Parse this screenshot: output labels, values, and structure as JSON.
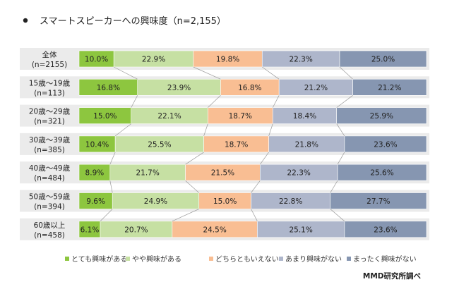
{
  "title": "スマートスピーカーへの興味度（n=2,155）",
  "source": "MMD研究所調べ",
  "chart_data": {
    "type": "bar",
    "orientation": "horizontal",
    "stacked": "percent",
    "categories": [
      {
        "name": "全体",
        "n": "(n=2155)"
      },
      {
        "name": "15歳～19歳",
        "n": "(n=113)"
      },
      {
        "name": "20歳～29歳",
        "n": "(n=321)"
      },
      {
        "name": "30歳～39歳",
        "n": "(n=385)"
      },
      {
        "name": "40歳～49歳",
        "n": "(n=484)"
      },
      {
        "name": "50歳～59歳",
        "n": "(n=394)"
      },
      {
        "name": "60歳以上",
        "n": "(n=458)"
      }
    ],
    "series": [
      {
        "name": "とても興味がある",
        "color": "#8dc63f",
        "values": [
          10.0,
          16.8,
          15.0,
          10.4,
          8.9,
          9.6,
          6.1
        ]
      },
      {
        "name": "やや興味がある",
        "color": "#c6e0a3",
        "values": [
          22.9,
          23.9,
          22.1,
          25.5,
          21.7,
          24.9,
          20.7
        ]
      },
      {
        "name": "どちらともいえない",
        "color": "#f9be93",
        "values": [
          19.8,
          16.8,
          18.7,
          18.7,
          21.5,
          15.0,
          24.5
        ]
      },
      {
        "name": "あまり興味がない",
        "color": "#aeb6cb",
        "values": [
          22.3,
          21.2,
          18.4,
          21.8,
          22.3,
          22.8,
          25.1
        ]
      },
      {
        "name": "まったく興味がない",
        "color": "#8696b1",
        "values": [
          25.0,
          21.2,
          25.9,
          23.6,
          25.6,
          27.7,
          23.6
        ]
      }
    ],
    "xlim": [
      0,
      100
    ],
    "legend": "bottom"
  }
}
